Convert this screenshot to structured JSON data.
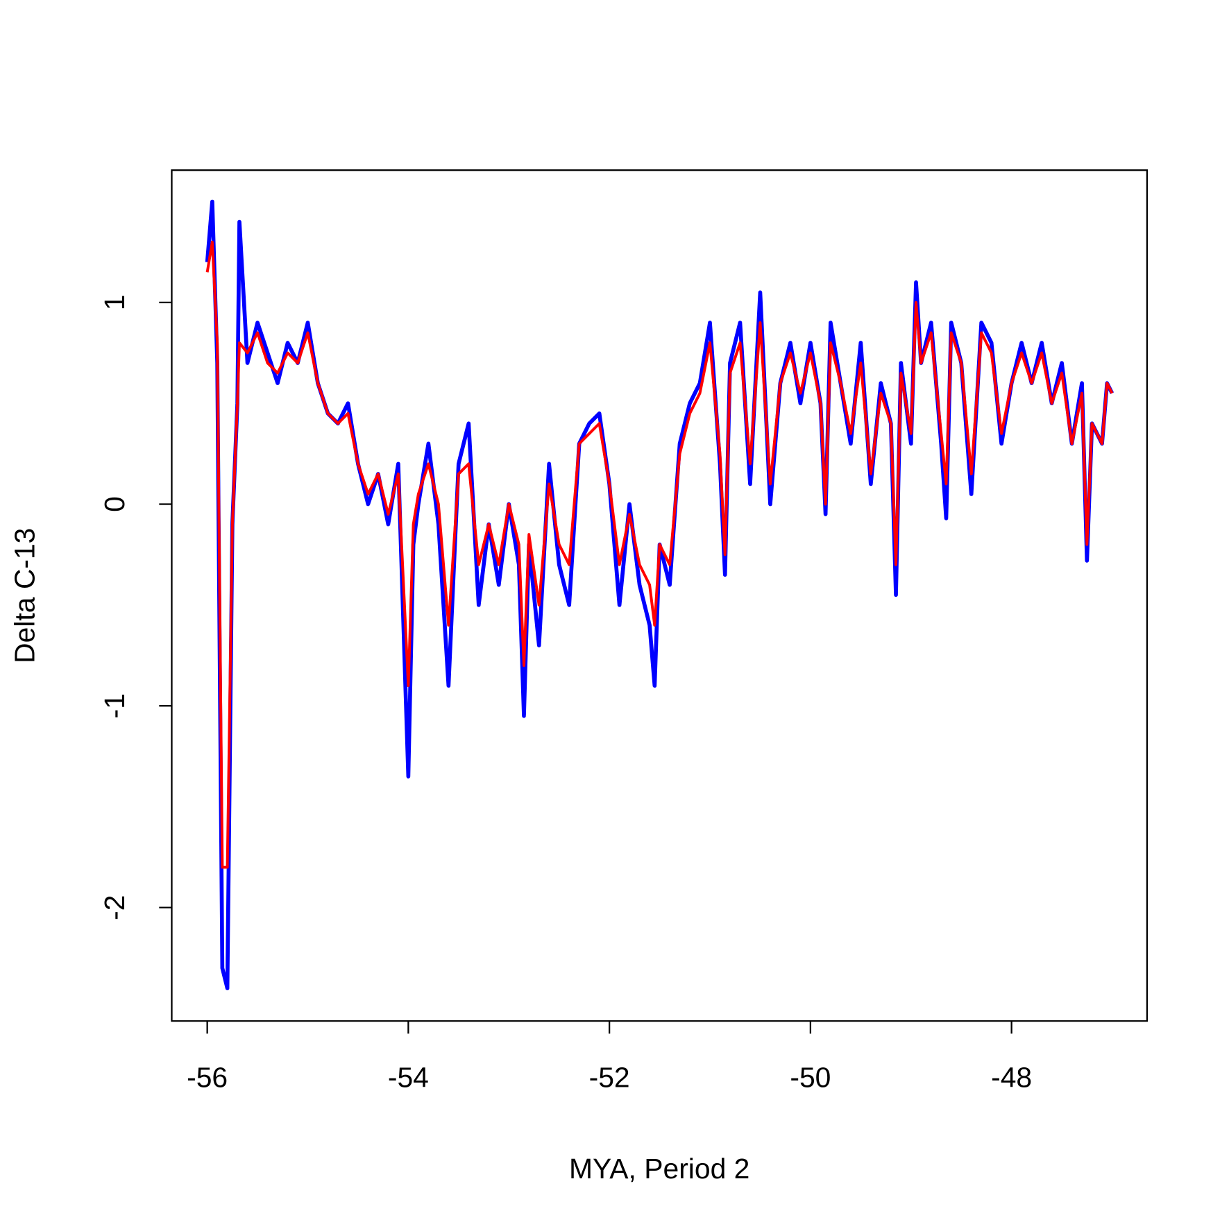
{
  "chart_data": {
    "type": "line",
    "x_label": "MYA, Period 2",
    "y_label": "Delta C-13",
    "xlim": [
      -56.353,
      -46.652
    ],
    "ylim": [
      -2.5625,
      1.656
    ],
    "xticks": [
      -56,
      -54,
      -52,
      -50,
      -48
    ],
    "yticks": [
      -2,
      -1,
      0,
      1
    ],
    "x": [
      -56.0,
      -55.95,
      -55.9,
      -55.85,
      -55.8,
      -55.75,
      -55.7,
      -55.68,
      -55.6,
      -55.5,
      -55.4,
      -55.3,
      -55.2,
      -55.1,
      -55.0,
      -54.9,
      -54.8,
      -54.7,
      -54.6,
      -54.5,
      -54.4,
      -54.3,
      -54.2,
      -54.1,
      -54.0,
      -53.95,
      -53.9,
      -53.8,
      -53.7,
      -53.6,
      -53.5,
      -53.4,
      -53.3,
      -53.2,
      -53.1,
      -53.0,
      -52.9,
      -52.85,
      -52.8,
      -52.7,
      -52.6,
      -52.5,
      -52.4,
      -52.3,
      -52.2,
      -52.1,
      -52.0,
      -51.9,
      -51.8,
      -51.7,
      -51.6,
      -51.55,
      -51.5,
      -51.4,
      -51.3,
      -51.2,
      -51.1,
      -51.0,
      -50.9,
      -50.85,
      -50.8,
      -50.7,
      -50.6,
      -50.5,
      -50.4,
      -50.3,
      -50.2,
      -50.1,
      -50.0,
      -49.9,
      -49.85,
      -49.8,
      -49.7,
      -49.6,
      -49.5,
      -49.4,
      -49.3,
      -49.2,
      -49.15,
      -49.1,
      -49.0,
      -48.95,
      -48.9,
      -48.8,
      -48.7,
      -48.65,
      -48.6,
      -48.5,
      -48.4,
      -48.3,
      -48.2,
      -48.1,
      -48.0,
      -47.9,
      -47.8,
      -47.7,
      -47.6,
      -47.5,
      -47.4,
      -47.3,
      -47.25,
      -47.2,
      -47.1,
      -47.05,
      -47.0
    ],
    "series": [
      {
        "color": "#0000ff",
        "values": [
          1.2,
          1.5,
          0.7,
          -2.3,
          -2.4,
          -0.1,
          0.5,
          1.4,
          0.7,
          0.9,
          0.75,
          0.6,
          0.8,
          0.7,
          0.9,
          0.6,
          0.45,
          0.4,
          0.5,
          0.2,
          0.0,
          0.15,
          -0.1,
          0.2,
          -1.35,
          -0.2,
          0.0,
          0.3,
          -0.1,
          -0.9,
          0.2,
          0.4,
          -0.5,
          -0.1,
          -0.4,
          0.0,
          -0.3,
          -1.05,
          -0.2,
          -0.7,
          0.2,
          -0.3,
          -0.5,
          0.3,
          0.4,
          0.45,
          0.1,
          -0.5,
          0.0,
          -0.4,
          -0.6,
          -0.9,
          -0.2,
          -0.4,
          0.3,
          0.5,
          0.6,
          0.9,
          0.2,
          -0.35,
          0.7,
          0.9,
          0.1,
          1.05,
          0.0,
          0.6,
          0.8,
          0.5,
          0.8,
          0.5,
          -0.05,
          0.9,
          0.6,
          0.3,
          0.8,
          0.1,
          0.6,
          0.4,
          -0.45,
          0.7,
          0.3,
          1.1,
          0.7,
          0.9,
          0.3,
          -0.07,
          0.9,
          0.7,
          0.05,
          0.9,
          0.8,
          0.3,
          0.6,
          0.8,
          0.6,
          0.8,
          0.5,
          0.7,
          0.3,
          0.6,
          -0.28,
          0.4,
          0.3,
          0.6,
          0.55
        ]
      },
      {
        "color": "#ff0000",
        "values": [
          1.15,
          1.3,
          0.8,
          -1.8,
          -1.8,
          -0.1,
          0.5,
          0.8,
          0.75,
          0.85,
          0.7,
          0.65,
          0.75,
          0.7,
          0.85,
          0.6,
          0.45,
          0.4,
          0.45,
          0.2,
          0.05,
          0.15,
          -0.05,
          0.15,
          -0.9,
          -0.1,
          0.05,
          0.2,
          0.0,
          -0.6,
          0.15,
          0.2,
          -0.3,
          -0.1,
          -0.3,
          0.0,
          -0.2,
          -0.8,
          -0.15,
          -0.5,
          0.1,
          -0.2,
          -0.3,
          0.3,
          0.35,
          0.4,
          0.1,
          -0.3,
          -0.05,
          -0.3,
          -0.4,
          -0.6,
          -0.2,
          -0.3,
          0.25,
          0.45,
          0.55,
          0.8,
          0.25,
          -0.25,
          0.65,
          0.8,
          0.2,
          0.9,
          0.1,
          0.6,
          0.75,
          0.55,
          0.75,
          0.5,
          0.0,
          0.8,
          0.6,
          0.35,
          0.7,
          0.15,
          0.55,
          0.4,
          -0.3,
          0.65,
          0.35,
          1.0,
          0.7,
          0.85,
          0.35,
          0.1,
          0.85,
          0.7,
          0.15,
          0.85,
          0.75,
          0.35,
          0.6,
          0.75,
          0.6,
          0.75,
          0.5,
          0.65,
          0.3,
          0.55,
          -0.2,
          0.4,
          0.3,
          0.6,
          0.55
        ]
      }
    ]
  }
}
